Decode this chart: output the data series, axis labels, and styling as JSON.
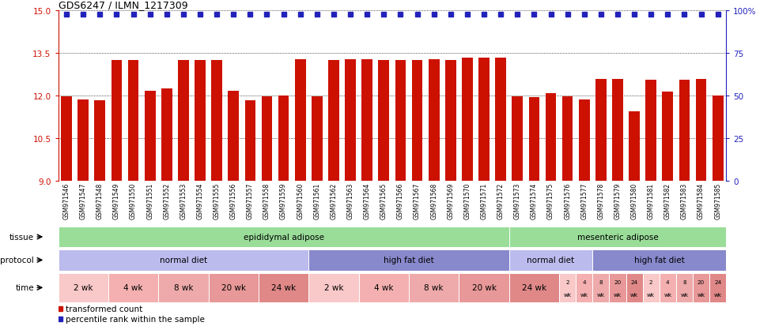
{
  "title": "GDS6247 / ILMN_1217309",
  "samples": [
    "GSM971546",
    "GSM971547",
    "GSM971548",
    "GSM971549",
    "GSM971550",
    "GSM971551",
    "GSM971552",
    "GSM971553",
    "GSM971554",
    "GSM971555",
    "GSM971556",
    "GSM971557",
    "GSM971558",
    "GSM971559",
    "GSM971560",
    "GSM971561",
    "GSM971562",
    "GSM971563",
    "GSM971564",
    "GSM971565",
    "GSM971566",
    "GSM971567",
    "GSM971568",
    "GSM971569",
    "GSM971570",
    "GSM971571",
    "GSM971572",
    "GSM971573",
    "GSM971574",
    "GSM971575",
    "GSM971576",
    "GSM971577",
    "GSM971578",
    "GSM971579",
    "GSM971580",
    "GSM971581",
    "GSM971582",
    "GSM971583",
    "GSM971584",
    "GSM971585"
  ],
  "bar_values": [
    11.97,
    11.87,
    11.83,
    13.27,
    13.25,
    12.18,
    12.25,
    13.25,
    13.27,
    13.25,
    12.18,
    11.83,
    11.97,
    12.0,
    13.28,
    11.97,
    13.27,
    13.28,
    13.28,
    13.25,
    13.25,
    13.25,
    13.28,
    13.27,
    13.35,
    13.35,
    13.35,
    11.97,
    11.95,
    12.08,
    11.97,
    11.87,
    12.6,
    12.6,
    11.45,
    12.55,
    12.15,
    12.55,
    12.6,
    12.0
  ],
  "ylim_left": [
    9.0,
    15.0
  ],
  "ylim_right": [
    0,
    100
  ],
  "yticks_left": [
    9,
    10.5,
    12,
    13.5,
    15
  ],
  "yticks_right": [
    0,
    25,
    50,
    75,
    100
  ],
  "ytick_right_labels": [
    "0",
    "25",
    "50",
    "75",
    "100%"
  ],
  "bar_color": "#CC1100",
  "percentile_color": "#2222BB",
  "bg_color": "#ffffff",
  "tick_bg": "#d8d8d8",
  "tissue_rows": [
    {
      "label": "epididymal adipose",
      "color": "#99dd99",
      "start": 0,
      "end": 27
    },
    {
      "label": "mesenteric adipose",
      "color": "#99dd99",
      "start": 27,
      "end": 40
    }
  ],
  "protocol_rows": [
    {
      "label": "normal diet",
      "color": "#bbbbee",
      "start": 0,
      "end": 15
    },
    {
      "label": "high fat diet",
      "color": "#8888cc",
      "start": 15,
      "end": 27
    },
    {
      "label": "normal diet",
      "color": "#bbbbee",
      "start": 27,
      "end": 32
    },
    {
      "label": "high fat diet",
      "color": "#8888cc",
      "start": 32,
      "end": 40
    }
  ],
  "time_rows": [
    {
      "label": "2 wk",
      "color": "#f9c8c8",
      "start": 0,
      "end": 3,
      "wide": true
    },
    {
      "label": "4 wk",
      "color": "#f4b0b0",
      "start": 3,
      "end": 6,
      "wide": true
    },
    {
      "label": "8 wk",
      "color": "#eeaaaa",
      "start": 6,
      "end": 9,
      "wide": true
    },
    {
      "label": "20 wk",
      "color": "#e89898",
      "start": 9,
      "end": 12,
      "wide": true
    },
    {
      "label": "24 wk",
      "color": "#e08888",
      "start": 12,
      "end": 15,
      "wide": true
    },
    {
      "label": "2 wk",
      "color": "#f9c8c8",
      "start": 15,
      "end": 18,
      "wide": true
    },
    {
      "label": "4 wk",
      "color": "#f4b0b0",
      "start": 18,
      "end": 21,
      "wide": true
    },
    {
      "label": "8 wk",
      "color": "#eeaaaa",
      "start": 21,
      "end": 24,
      "wide": true
    },
    {
      "label": "20 wk",
      "color": "#e89898",
      "start": 24,
      "end": 27,
      "wide": true
    },
    {
      "label": "24 wk",
      "color": "#e08888",
      "start": 27,
      "end": 30,
      "wide": true
    },
    {
      "label": "2 wk",
      "color": "#f9c8c8",
      "start": 30,
      "end": 31,
      "wide": false
    },
    {
      "label": "4 wk",
      "color": "#f4b0b0",
      "start": 31,
      "end": 32,
      "wide": false
    },
    {
      "label": "8 wk",
      "color": "#eeaaaa",
      "start": 32,
      "end": 33,
      "wide": false
    },
    {
      "label": "20 wk",
      "color": "#e89898",
      "start": 33,
      "end": 34,
      "wide": false
    },
    {
      "label": "24 wk",
      "color": "#e08888",
      "start": 34,
      "end": 35,
      "wide": false
    },
    {
      "label": "2 wk",
      "color": "#f9c8c8",
      "start": 35,
      "end": 36,
      "wide": false
    },
    {
      "label": "4 wk",
      "color": "#f4b0b0",
      "start": 36,
      "end": 37,
      "wide": false
    },
    {
      "label": "8 wk",
      "color": "#eeaaaa",
      "start": 37,
      "end": 38,
      "wide": false
    },
    {
      "label": "20 wk",
      "color": "#e89898",
      "start": 38,
      "end": 39,
      "wide": false
    },
    {
      "label": "24 wk",
      "color": "#e08888",
      "start": 39,
      "end": 40,
      "wide": false
    }
  ],
  "legend_bar_label": "transformed count",
  "legend_pct_label": "percentile rank within the sample"
}
